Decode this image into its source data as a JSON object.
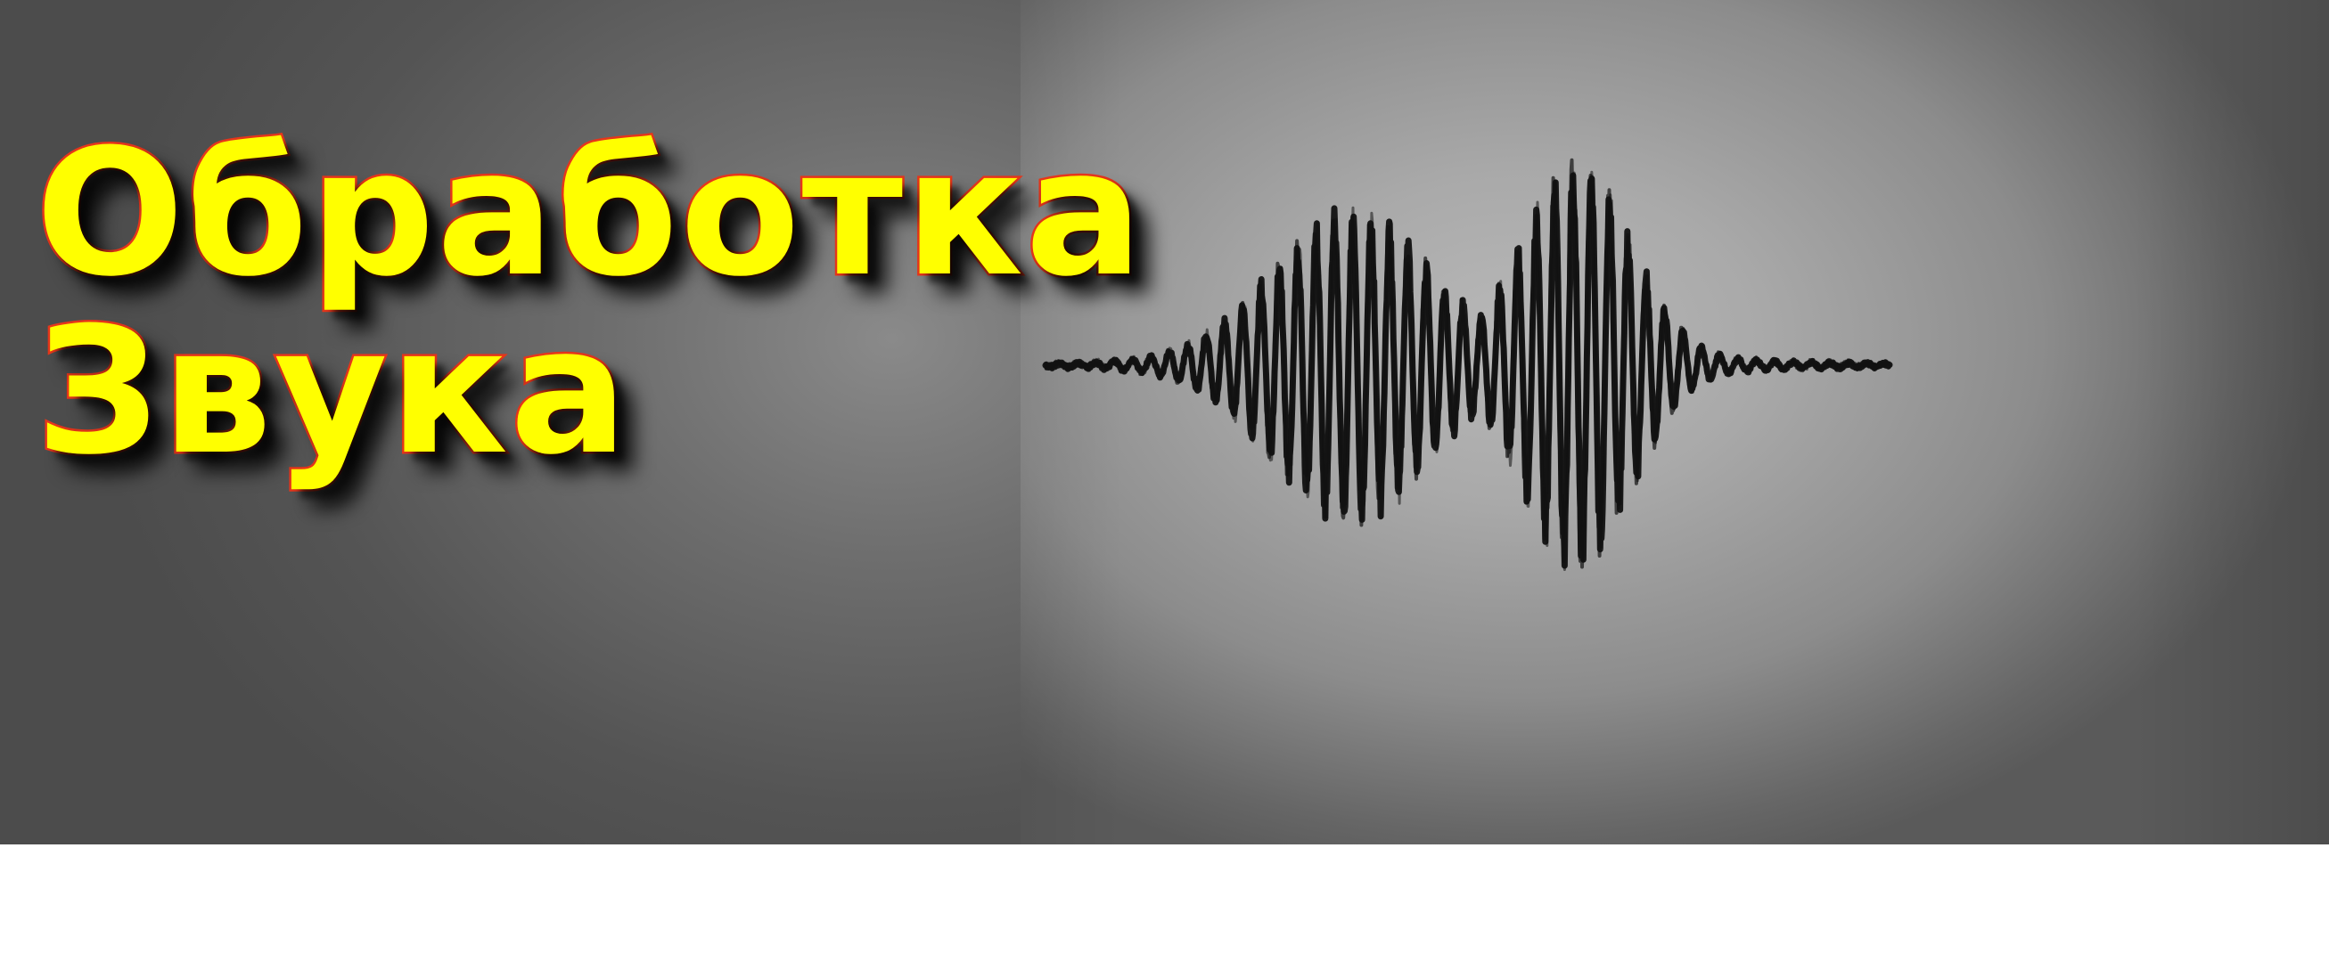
{
  "banner": {
    "title_line1": "Обработка",
    "title_line2": "Звука",
    "title_color": "#ffff00",
    "title_outline_color": "#e6361b",
    "waveform_icon": "sound-waveform-drawing",
    "waveform_color": "#111111"
  }
}
